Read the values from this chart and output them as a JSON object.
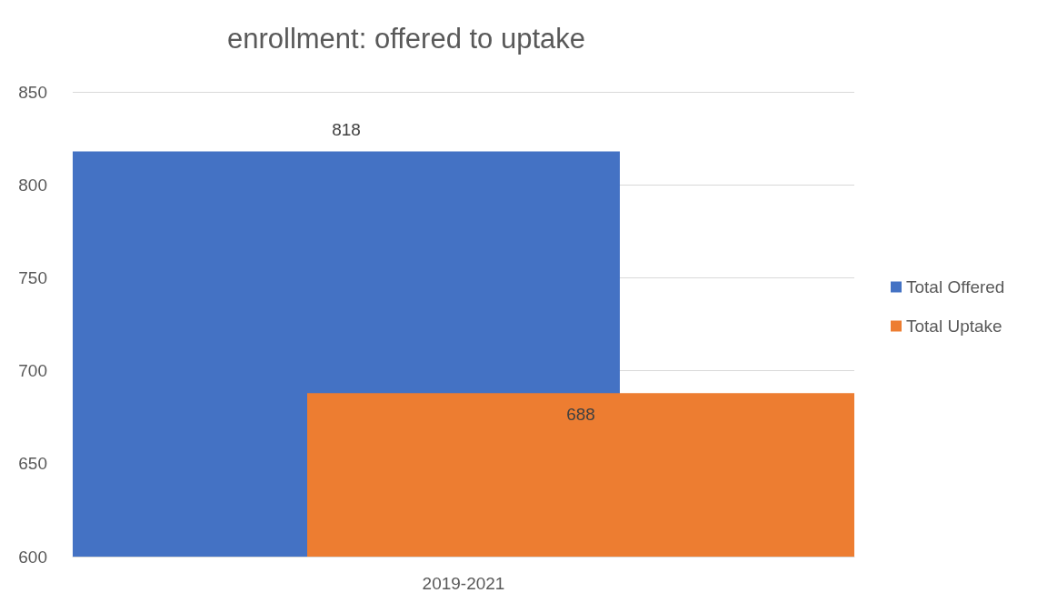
{
  "chart_data": {
    "type": "bar",
    "title": "enrollment: offered to uptake",
    "categories": [
      "2019-2021"
    ],
    "series": [
      {
        "name": "Total Offered",
        "color": "#4472c4",
        "values": [
          818
        ]
      },
      {
        "name": "Total Uptake",
        "color": "#ed7d31",
        "values": [
          688
        ]
      }
    ],
    "ylim": [
      600,
      850
    ],
    "yticks": [
      600,
      650,
      700,
      750,
      800,
      850
    ],
    "grid": "y",
    "legend": "right",
    "data_labels": true
  }
}
